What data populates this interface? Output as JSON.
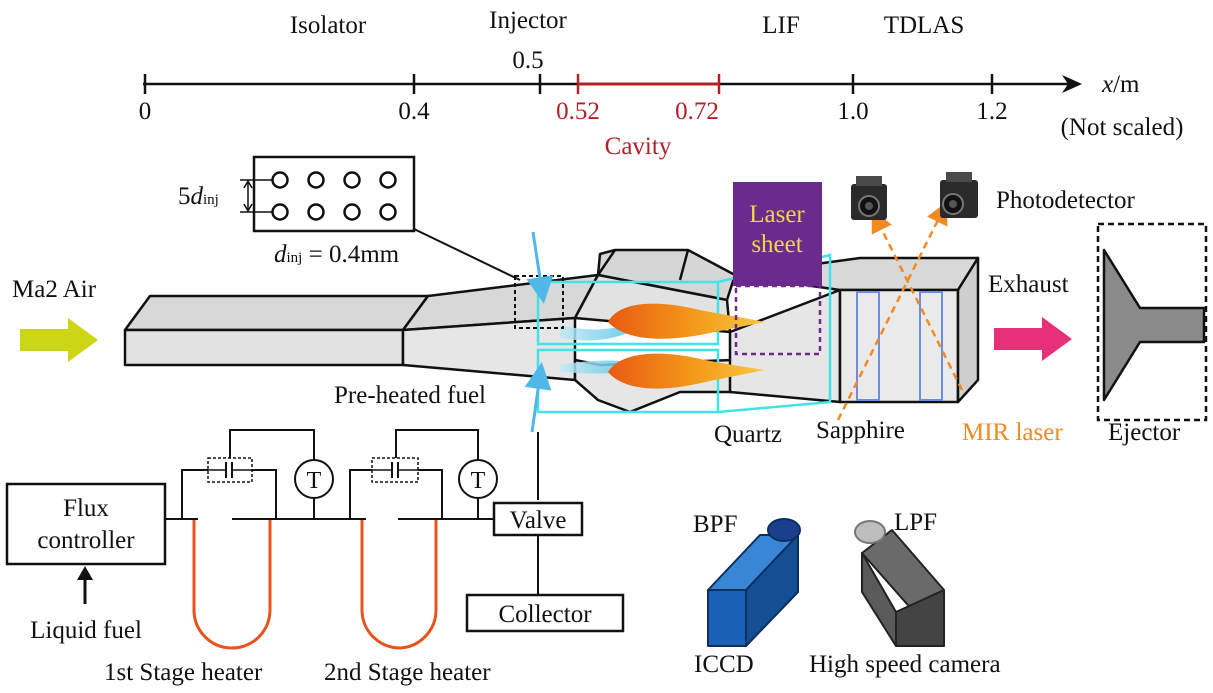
{
  "axis": {
    "var_label": "x",
    "unit_label": "/m",
    "note": "(Not scaled)",
    "ticks": [
      "0",
      "0.4",
      "0.5",
      "0.52",
      "0.72",
      "1.0",
      "1.2"
    ],
    "sections": [
      "Isolator",
      "Injector",
      "LIF",
      "TDLAS"
    ],
    "cavity_label": "Cavity"
  },
  "injector_detail": {
    "spacing_prefix": "5",
    "d_symbol": "d",
    "d_subscript": "inj",
    "dia_value": " = 0.4mm"
  },
  "flow": {
    "inlet_label": "Ma2 Air",
    "exhaust_label": "Exhaust",
    "fuel_label": "Pre-heated fuel"
  },
  "optics": {
    "laser_sheet_line1": "Laser",
    "laser_sheet_line2": "sheet",
    "photodetector_label": "Photodetector",
    "quartz_label": "Quartz",
    "sapphire_label": "Sapphire",
    "mir_laser_label": "MIR laser",
    "ejector_label": "Ejector"
  },
  "fuel_system": {
    "flux_line1": "Flux",
    "flux_line2": "controller",
    "liquid_fuel_label": "Liquid fuel",
    "valve_label": "Valve",
    "collector_label": "Collector",
    "heater1_label": "1st Stage heater",
    "heater2_label": "2nd Stage heater",
    "thermo_symbol": "T"
  },
  "cameras": {
    "bpf_label": "BPF",
    "lpf_label": "LPF",
    "iccd_label": "ICCD",
    "hs_camera_label": "High speed camera"
  },
  "colors": {
    "cavity_red": "#b52027",
    "laser_purple": "#6a2a8e",
    "laser_text": "#f2d548",
    "quartz_cyan": "#3fe3e8",
    "mir_orange": "#f08a24",
    "air_arrow": "#cdd615",
    "exhaust_arrow": "#e6317a",
    "heater_red": "#e8521c",
    "iccd_blue": "#1a62b6",
    "camera_gray": "#5a5a5a"
  }
}
